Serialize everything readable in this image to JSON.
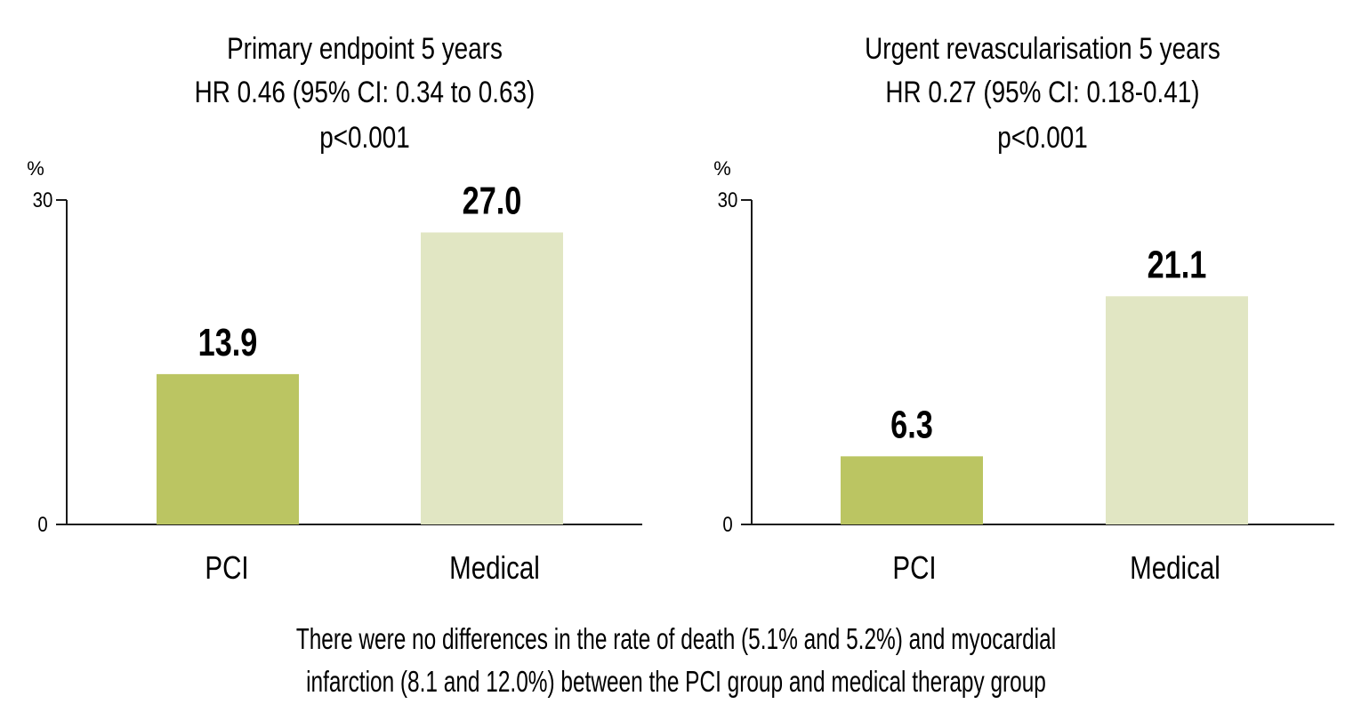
{
  "chart_data": [
    {
      "type": "bar",
      "title": [
        "Primary endpoint 5 years",
        "HR 0.46 (95% CI: 0.34 to 0.63)",
        "p<0.001"
      ],
      "ylabel": "%",
      "xlabel": "",
      "ylim": [
        0,
        30
      ],
      "yticks": [
        "0",
        "30"
      ],
      "ytick_values": [
        0,
        30
      ],
      "categories": [
        "PCI",
        "Medical"
      ],
      "values": [
        13.9,
        27.0
      ],
      "data_labels": [
        "13.9",
        "27.0"
      ],
      "colors": [
        "#bbc562",
        "#e1e6c3"
      ],
      "grid": false
    },
    {
      "type": "bar",
      "title": [
        "Urgent revascularisation 5 years",
        "HR 0.27 (95% CI: 0.18-0.41)",
        "p<0.001"
      ],
      "ylabel": "%",
      "xlabel": "",
      "ylim": [
        0,
        30
      ],
      "yticks": [
        "0",
        "30"
      ],
      "ytick_values": [
        0,
        30
      ],
      "categories": [
        "PCI",
        "Medical"
      ],
      "values": [
        6.3,
        21.1
      ],
      "data_labels": [
        "6.3",
        "21.1"
      ],
      "colors": [
        "#bbc562",
        "#e1e6c3"
      ],
      "grid": false
    }
  ],
  "footnote": [
    "There were no differences in the rate of death (5.1% and 5.2%) and myocardial",
    "infarction (8.1 and 12.0%) between the PCI group and medical therapy group"
  ]
}
